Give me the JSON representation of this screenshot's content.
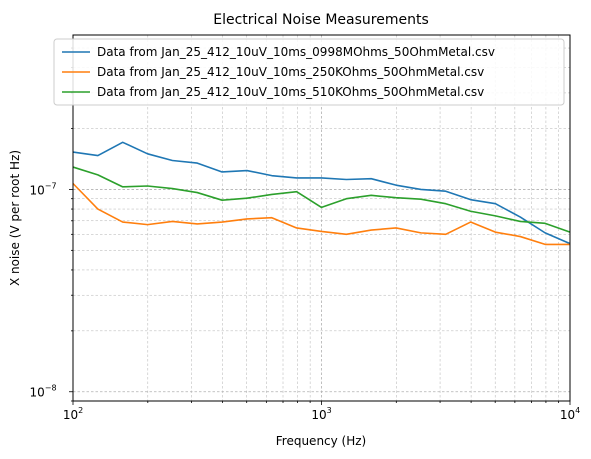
{
  "chart_data": {
    "type": "line",
    "title": "Electrical Noise Measurements",
    "xlabel": "Frequency (Hz)",
    "ylabel": "X noise (V per root Hz)",
    "xscale": "log",
    "yscale": "log",
    "xlim": [
      100,
      10000
    ],
    "ylim": [
      9e-09,
      5.8e-07
    ],
    "x_ticks": [
      {
        "value": 100,
        "base": "10",
        "exp": "2"
      },
      {
        "value": 1000,
        "base": "10",
        "exp": "3"
      },
      {
        "value": 10000,
        "base": "10",
        "exp": "4"
      }
    ],
    "y_ticks": [
      {
        "value": 1e-08,
        "base": "10",
        "exp": "−8"
      },
      {
        "value": 1e-07,
        "base": "10",
        "exp": "−7"
      }
    ],
    "grid": true,
    "legend_position": "top-right",
    "x": [
      100,
      125.9,
      158.5,
      199.5,
      251.2,
      316.2,
      398.1,
      501.2,
      631,
      794.3,
      1000,
      1259,
      1585,
      1995,
      2512,
      3162,
      3981,
      5012,
      6310,
      7943,
      10000
    ],
    "series": [
      {
        "name": "Data from Jan_25_412_10uV_10ms_0998MOhms_50OhmMetal.csv",
        "color": "#1f77b4",
        "values": [
          1.53e-07,
          1.47e-07,
          1.71e-07,
          1.5e-07,
          1.39e-07,
          1.35e-07,
          1.22e-07,
          1.24e-07,
          1.17e-07,
          1.14e-07,
          1.14e-07,
          1.12e-07,
          1.13e-07,
          1.05e-07,
          1e-07,
          9.8e-08,
          8.9e-08,
          8.5e-08,
          7.3e-08,
          6.1e-08,
          5.4e-08
        ]
      },
      {
        "name": "Data from Jan_25_412_10uV_10ms_250KOhms_50OhmMetal.csv",
        "color": "#ff7f0e",
        "values": [
          1.07e-07,
          8e-08,
          6.9e-08,
          6.7e-08,
          6.95e-08,
          6.75e-08,
          6.9e-08,
          7.15e-08,
          7.25e-08,
          6.45e-08,
          6.2e-08,
          6e-08,
          6.3e-08,
          6.45e-08,
          6.1e-08,
          6e-08,
          6.9e-08,
          6.15e-08,
          5.85e-08,
          5.35e-08,
          5.35e-08
        ]
      },
      {
        "name": "Data from Jan_25_412_10uV_10ms_510KOhms_50OhmMetal.csv",
        "color": "#2ca02c",
        "values": [
          1.29e-07,
          1.18e-07,
          1.03e-07,
          1.04e-07,
          1.01e-07,
          9.65e-08,
          8.85e-08,
          9.05e-08,
          9.45e-08,
          9.75e-08,
          8.15e-08,
          9e-08,
          9.35e-08,
          9.1e-08,
          8.95e-08,
          8.5e-08,
          7.8e-08,
          7.4e-08,
          6.95e-08,
          6.8e-08,
          6.15e-08
        ]
      }
    ]
  }
}
